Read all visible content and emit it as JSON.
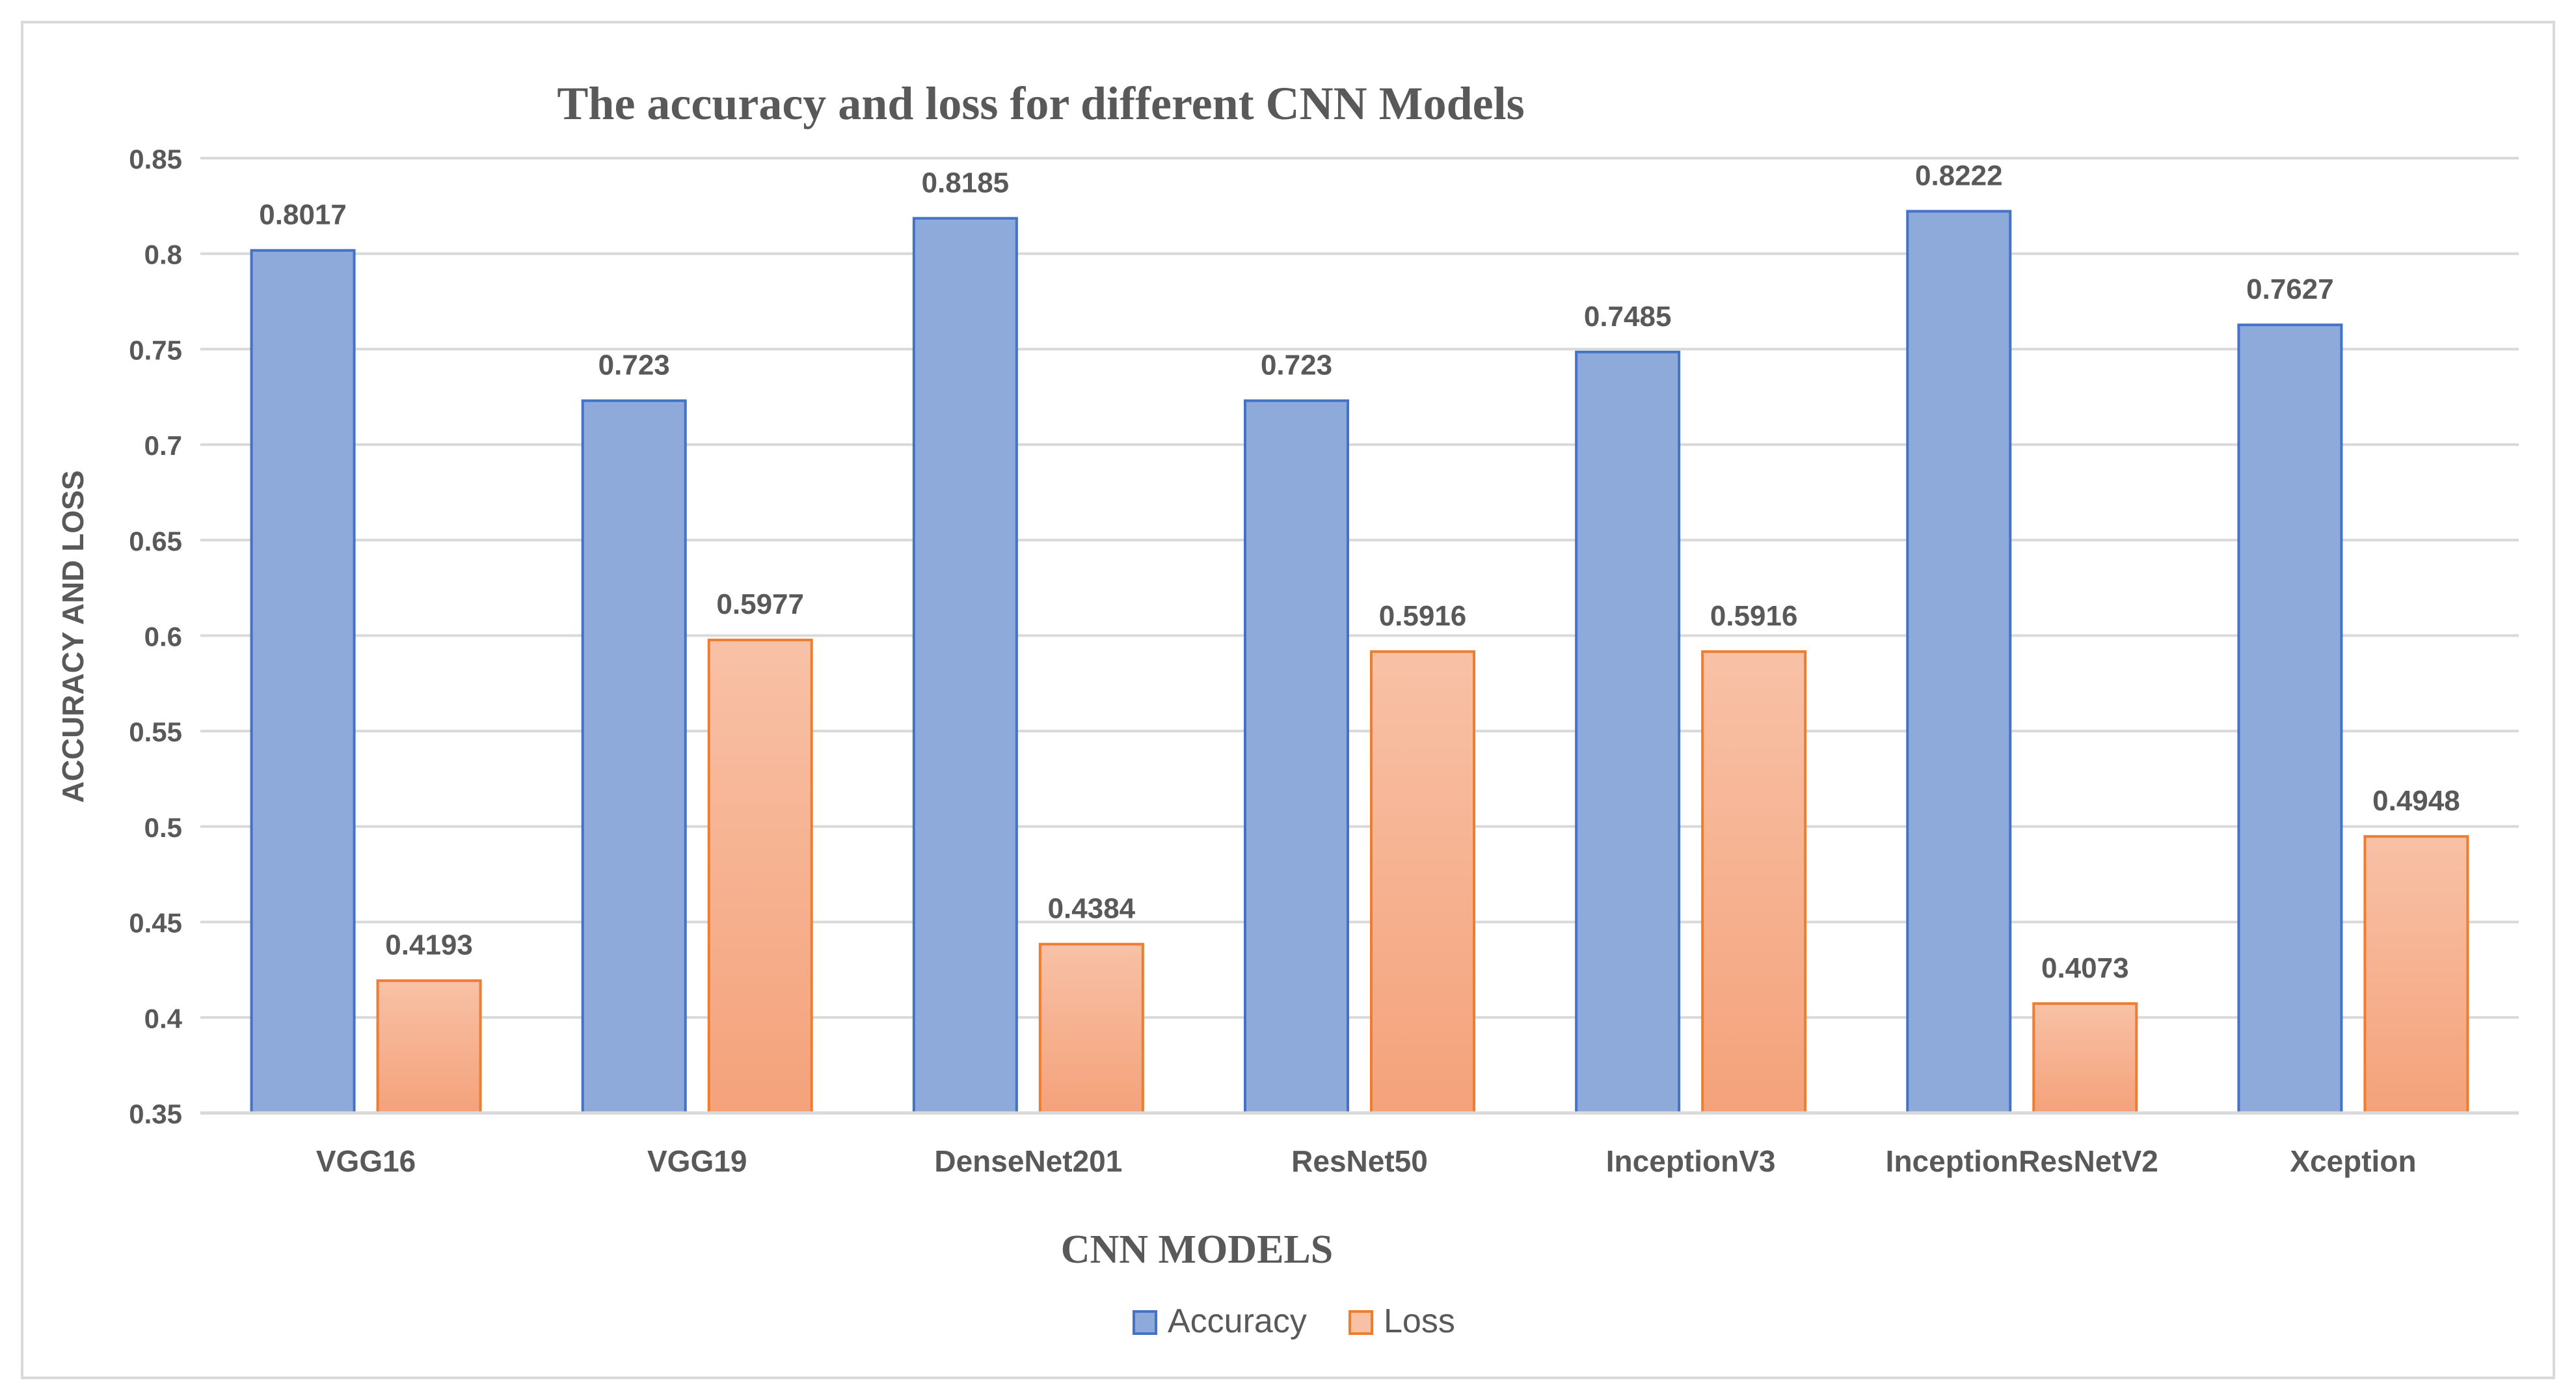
{
  "chart_data": {
    "type": "bar",
    "title": "The accuracy and loss for different CNN Models",
    "xlabel": "CNN MODELS",
    "ylabel": "ACCURACY AND LOSS",
    "ylim": [
      0.35,
      0.85
    ],
    "yticks": [
      "0.35",
      "0.4",
      "0.45",
      "0.5",
      "0.55",
      "0.6",
      "0.65",
      "0.7",
      "0.75",
      "0.8",
      "0.85"
    ],
    "categories": [
      "VGG16",
      "VGG19",
      "DenseNet201",
      "ResNet50",
      "InceptionV3",
      "InceptionResNetV2",
      "Xception"
    ],
    "series": [
      {
        "name": "Accuracy",
        "values": [
          0.8017,
          0.723,
          0.8185,
          0.723,
          0.7485,
          0.8222,
          0.7627
        ],
        "labels": [
          "0.8017",
          "0.723",
          "0.8185",
          "0.723",
          "0.7485",
          "0.8222",
          "0.7627"
        ],
        "fill": "#8eaadb",
        "stroke": "#4472c4"
      },
      {
        "name": "Loss",
        "values": [
          0.4193,
          0.5977,
          0.4384,
          0.5916,
          0.5916,
          0.4073,
          0.4948
        ],
        "labels": [
          "0.4193",
          "0.5977",
          "0.4384",
          "0.5916",
          "0.5916",
          "0.4073",
          "0.4948"
        ],
        "fill_top": "#f8c1a6",
        "fill_bottom": "#f4a27a",
        "stroke": "#ed7d31"
      }
    ],
    "grid": true,
    "legend_position": "bottom",
    "gridline_color": "#d9d9d9",
    "text_color": "#595959"
  }
}
